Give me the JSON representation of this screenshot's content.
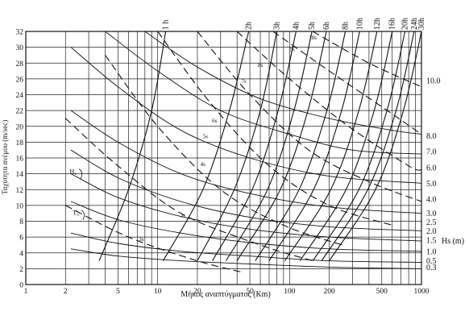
{
  "chart_data": {
    "type": "line",
    "title": "",
    "xlabel": "Μήκος αναπτύγματος (Km)",
    "ylabel": "Ταχύτητα ανέμου (m/sec)",
    "right_axis_label": "Hs (m)",
    "x_scale": "log",
    "xlim": [
      1,
      1000
    ],
    "ylim": [
      0,
      32
    ],
    "grid": true,
    "x_ticks": [
      1,
      2,
      3,
      4,
      5,
      6,
      7,
      8,
      9,
      10,
      20,
      30,
      40,
      50,
      60,
      70,
      80,
      90,
      100,
      200,
      300,
      400,
      500,
      600,
      700,
      800,
      900,
      1000
    ],
    "x_tick_labels": [
      {
        "x": 1,
        "label": "1"
      },
      {
        "x": 2,
        "label": "2"
      },
      {
        "x": 5,
        "label": "5"
      },
      {
        "x": 10,
        "label": "10"
      },
      {
        "x": 20,
        "label": "20"
      },
      {
        "x": 50,
        "label": "50"
      },
      {
        "x": 100,
        "label": "100"
      },
      {
        "x": 200,
        "label": "200"
      },
      {
        "x": 500,
        "label": "500"
      },
      {
        "x": 1000,
        "label": "1000"
      }
    ],
    "y_ticks": [
      0,
      2,
      4,
      6,
      8,
      10,
      12,
      14,
      16,
      18,
      20,
      22,
      24,
      26,
      28,
      30,
      32
    ],
    "duration_labels": [
      {
        "x": 11.5,
        "label": "1 h"
      },
      {
        "x": 49,
        "label": "2h"
      },
      {
        "x": 80,
        "label": "3h"
      },
      {
        "x": 112,
        "label": "4h"
      },
      {
        "x": 148,
        "label": "5h"
      },
      {
        "x": 190,
        "label": "6h"
      },
      {
        "x": 265,
        "label": "8h"
      },
      {
        "x": 340,
        "label": "10h"
      },
      {
        "x": 460,
        "label": "12h"
      },
      {
        "x": 600,
        "label": "16h"
      },
      {
        "x": 750,
        "label": "20h"
      },
      {
        "x": 880,
        "label": "24h"
      },
      {
        "x": 1000,
        "label": "30h"
      }
    ],
    "duration_curves": [
      {
        "label": "1 h",
        "x": [
          3.6,
          6,
          9,
          11.5
        ],
        "y": [
          3,
          12,
          22,
          32
        ]
      },
      {
        "label": "2h",
        "x": [
          11,
          22,
          35,
          49
        ],
        "y": [
          3,
          12,
          22,
          32
        ]
      },
      {
        "label": "3h",
        "x": [
          20,
          38,
          60,
          80
        ],
        "y": [
          3,
          12,
          22,
          32
        ]
      },
      {
        "label": "4h",
        "x": [
          26,
          52,
          82,
          112
        ],
        "y": [
          3,
          12,
          22,
          32
        ]
      },
      {
        "label": "5h",
        "x": [
          33,
          68,
          108,
          148
        ],
        "y": [
          3,
          12,
          22,
          32
        ]
      },
      {
        "label": "6h",
        "x": [
          40,
          85,
          138,
          190
        ],
        "y": [
          3,
          12,
          22,
          32
        ]
      },
      {
        "label": "8h",
        "x": [
          55,
          118,
          192,
          265
        ],
        "y": [
          3,
          12,
          22,
          32
        ]
      },
      {
        "label": "10h",
        "x": [
          70,
          152,
          248,
          340
        ],
        "y": [
          3,
          12,
          22,
          32
        ]
      },
      {
        "label": "12h",
        "x": [
          92,
          205,
          335,
          460
        ],
        "y": [
          3,
          12,
          22,
          32
        ]
      },
      {
        "label": "16h",
        "x": [
          120,
          268,
          438,
          600
        ],
        "y": [
          3,
          12,
          22,
          32
        ]
      },
      {
        "label": "20h",
        "x": [
          150,
          335,
          548,
          750
        ],
        "y": [
          3,
          12,
          22,
          32
        ]
      },
      {
        "label": "24h",
        "x": [
          175,
          392,
          642,
          880
        ],
        "y": [
          3,
          12,
          22,
          32
        ]
      },
      {
        "label": "30h",
        "x": [
          200,
          448,
          730,
          1000
        ],
        "y": [
          3,
          12,
          22,
          32
        ]
      }
    ],
    "period_curves": [
      {
        "label": "3s",
        "x": [
          2,
          6,
          20,
          45
        ],
        "y": [
          10,
          6,
          3,
          1.5
        ]
      },
      {
        "label": "4s",
        "x": [
          2,
          5,
          15,
          60,
          150
        ],
        "y": [
          21,
          15,
          9,
          5,
          3
        ]
      },
      {
        "label": "5s",
        "x": [
          4,
          10,
          30,
          90,
          250
        ],
        "y": [
          29,
          20,
          12,
          7.5,
          5
        ]
      },
      {
        "label": "6s",
        "x": [
          10,
          25,
          70,
          200,
          600
        ],
        "y": [
          32,
          23,
          15,
          10,
          7.5
        ]
      },
      {
        "label": "7s",
        "x": [
          20,
          50,
          140,
          400,
          1000
        ],
        "y": [
          32,
          24,
          17,
          13,
          10.5
        ]
      },
      {
        "label": "8s",
        "x": [
          40,
          100,
          280,
          800,
          1000
        ],
        "y": [
          32,
          26,
          20,
          15,
          14.5
        ]
      },
      {
        "label": "9s",
        "x": [
          75,
          200,
          550,
          1000
        ],
        "y": [
          32,
          27,
          22,
          19
        ]
      },
      {
        "label": "10s",
        "x": [
          150,
          400,
          1000
        ],
        "y": [
          32,
          28,
          25
        ]
      }
    ],
    "period_labels": [
      {
        "x": 7.5,
        "y": 5.5,
        "label": "3s"
      },
      {
        "x": 15.5,
        "y": 8.5,
        "label": "3s"
      },
      {
        "x": 22,
        "y": 15,
        "label": "4s"
      },
      {
        "x": 23,
        "y": 18.5,
        "label": "5s"
      },
      {
        "x": 27,
        "y": 20.5,
        "label": "6s"
      },
      {
        "x": 45,
        "y": 25.5,
        "label": "7s"
      },
      {
        "x": 60,
        "y": 27.5,
        "label": "8s"
      },
      {
        "x": 105,
        "y": 29.5,
        "label": "9s"
      },
      {
        "x": 150,
        "y": 31,
        "label": "10s"
      }
    ],
    "hs_curves": [
      {
        "label": "0.3",
        "x": [
          2.2,
          5,
          15,
          50,
          200,
          1000
        ],
        "y": [
          4.5,
          3.6,
          3,
          2.6,
          2.2,
          2
        ]
      },
      {
        "label": "0.5",
        "x": [
          2.2,
          5,
          15,
          50,
          200,
          1000
        ],
        "y": [
          6.5,
          5.2,
          4.2,
          3.6,
          3,
          2.8
        ]
      },
      {
        "label": "1.0",
        "x": [
          2.2,
          5,
          15,
          50,
          200,
          1000
        ],
        "y": [
          10.5,
          8.2,
          6.5,
          5.3,
          4.5,
          4.2
        ]
      },
      {
        "label": "1.5",
        "x": [
          2.2,
          5,
          15,
          50,
          200,
          1000
        ],
        "y": [
          14,
          11,
          8.6,
          7,
          6,
          5.5
        ]
      },
      {
        "label": "2.0",
        "x": [
          2.2,
          5,
          15,
          50,
          200,
          1000
        ],
        "y": [
          17,
          13.5,
          10.5,
          8.5,
          7.3,
          6.8
        ]
      },
      {
        "label": "3.0",
        "x": [
          2.2,
          5,
          15,
          50,
          200,
          1000
        ],
        "y": [
          22,
          18,
          14,
          11.5,
          9.8,
          9
        ]
      },
      {
        "label": "5.0",
        "x": [
          2.2,
          5,
          15,
          50,
          200,
          1000
        ],
        "y": [
          30,
          25,
          19.5,
          16,
          13.7,
          12.8
        ]
      },
      {
        "label": "8.0",
        "x": [
          4,
          10,
          30,
          100,
          300,
          1000
        ],
        "y": [
          32,
          27,
          22,
          19,
          17,
          16.5
        ]
      },
      {
        "label": "10.0",
        "x": [
          8,
          20,
          60,
          200,
          600,
          1000
        ],
        "y": [
          32,
          27.5,
          23.5,
          21,
          19.5,
          19
        ]
      }
    ],
    "hs_right_labels": [
      {
        "y": 2.2,
        "label": "0.3"
      },
      {
        "y": 3.0,
        "label": "0.5"
      },
      {
        "y": 4.2,
        "label": "1.0"
      },
      {
        "y": 5.6,
        "label": "1.5"
      },
      {
        "y": 6.8,
        "label": "2.0"
      },
      {
        "y": 7.9,
        "label": "2.5"
      },
      {
        "y": 9.0,
        "label": "3.0"
      },
      {
        "y": 10.8,
        "label": "4.0"
      },
      {
        "y": 12.8,
        "label": "5.0"
      },
      {
        "y": 14.8,
        "label": "6.0"
      },
      {
        "y": 16.8,
        "label": "7.0"
      },
      {
        "y": 18.8,
        "label": "8.0"
      },
      {
        "y": 25.8,
        "label": "10.0"
      }
    ],
    "annotations": [
      {
        "x": 2.5,
        "y": 14,
        "label": "H₅"
      },
      {
        "x": 2.6,
        "y": 8.8,
        "label": "T₅"
      }
    ]
  }
}
